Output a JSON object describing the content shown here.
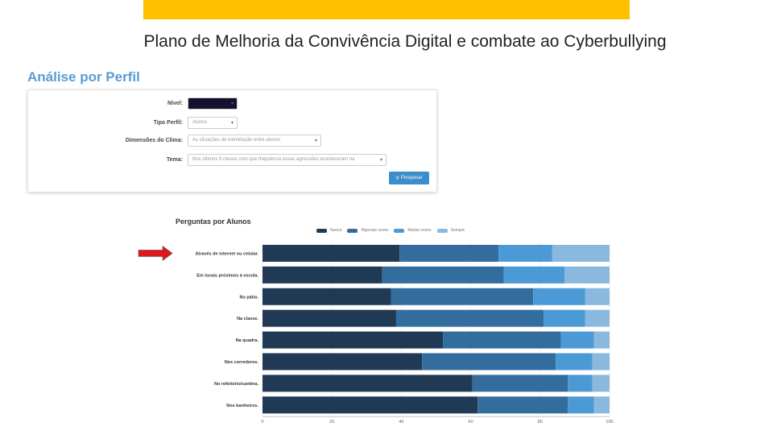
{
  "slide": {
    "title": "Plano de Melhoria da Convivência Digital e combate ao Cyberbullying",
    "accent_color": "#FFC000"
  },
  "section": {
    "title": "Análise por Perfil"
  },
  "filters": [
    {
      "label": "Nível:",
      "value": ""
    },
    {
      "label": "Tipo Perfil:",
      "value": "Alunos"
    },
    {
      "label": "Dimensões do Clima:",
      "value": "As situações de intimidação entre alunos"
    },
    {
      "label": "Tema:",
      "value": "Nos últimos 6 meses com que frequência essas agressões aconteceram na"
    }
  ],
  "search_button": {
    "icon": "search-icon",
    "label": "Pesquisar"
  },
  "chart_data": {
    "type": "bar",
    "orientation": "horizontal",
    "stacked": true,
    "title": "Perguntas por Alunos",
    "categories": [
      "Através de internet ou celular.",
      "Em locais próximos à escola.",
      "No pátio.",
      "Na classe.",
      "Na quadra.",
      "Nos corredores.",
      "No refeitório/cantina.",
      "Nos banheiros."
    ],
    "series": [
      {
        "name": "Nunca",
        "color": "#203a55",
        "values": [
          39.5,
          34.5,
          37,
          38.5,
          52,
          46,
          60.5,
          62
        ]
      },
      {
        "name": "Algumas vezes",
        "color": "#326d9e",
        "values": [
          28.5,
          35,
          41,
          42.5,
          34,
          38.5,
          27.5,
          26
        ]
      },
      {
        "name": "Muitas vezes",
        "color": "#4b9ad6",
        "values": [
          15.5,
          17.5,
          15,
          12,
          9.5,
          10.5,
          7,
          7.5
        ]
      },
      {
        "name": "Sempre",
        "color": "#8ab8de",
        "values": [
          16.5,
          13,
          7,
          7,
          4.5,
          5,
          5,
          4.5
        ]
      }
    ],
    "xlim": [
      0,
      100
    ],
    "xticks": [
      0,
      20,
      40,
      60,
      80,
      100
    ],
    "legend_position": "top",
    "highlight_arrow_color": "#e0161b"
  }
}
